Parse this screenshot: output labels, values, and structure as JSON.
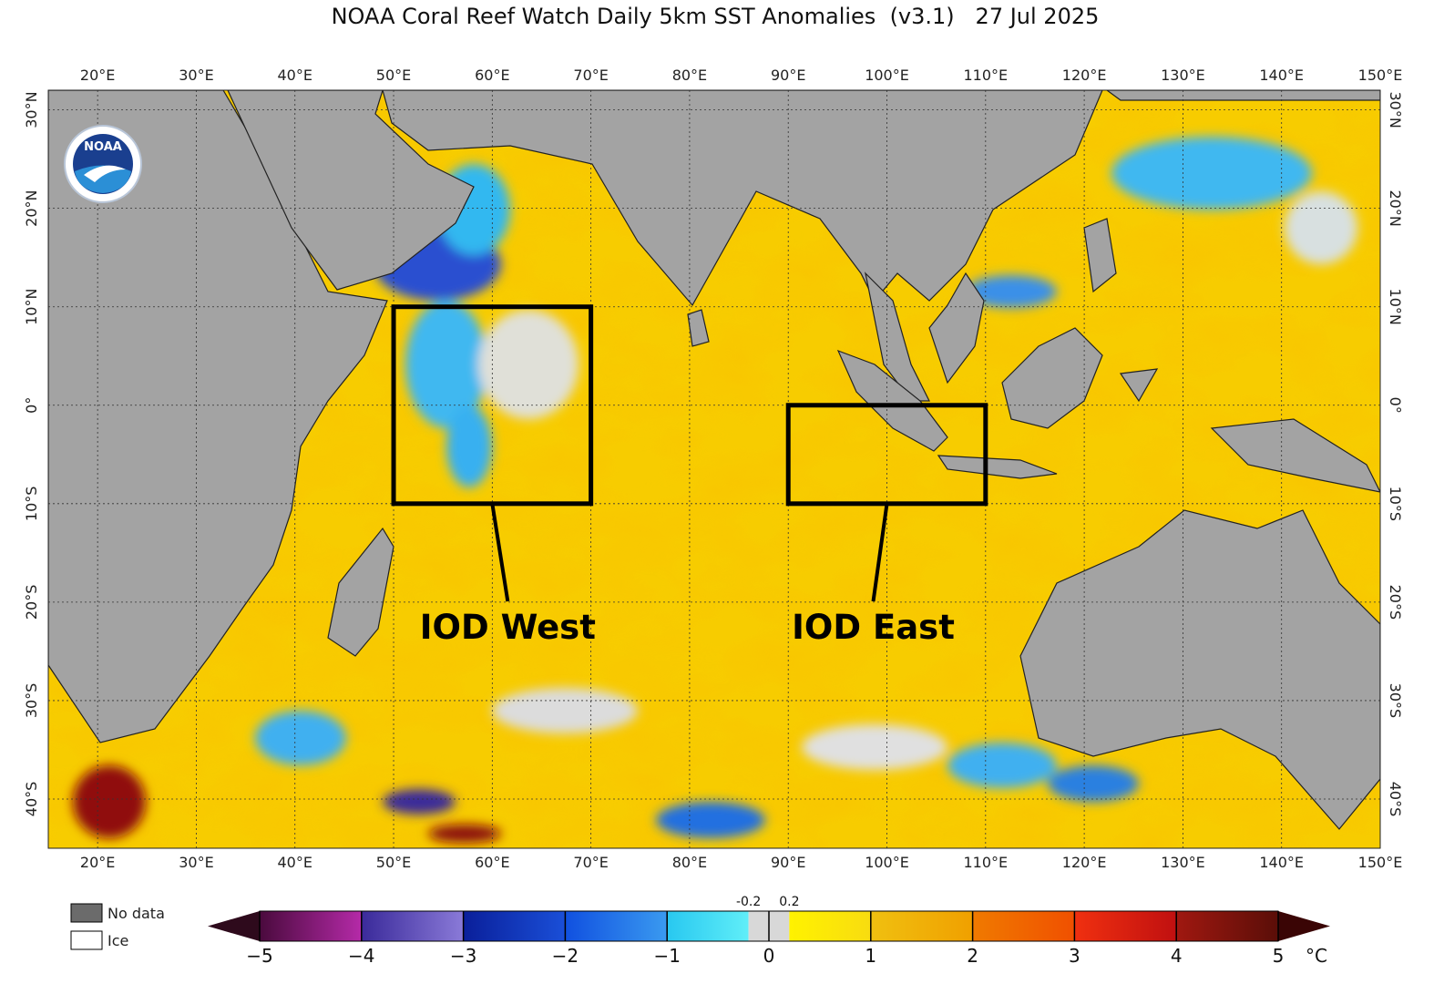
{
  "map": {
    "title": "NOAA Coral Reef Watch Daily 5km SST Anomalies  (v3.1)   27 Jul 2025",
    "logo_text": "NOAA",
    "lonlim": [
      15,
      150
    ],
    "latlim": [
      -45,
      32
    ],
    "lon_ticks": [
      {
        "value": 20,
        "label": "20°E"
      },
      {
        "value": 30,
        "label": "30°E"
      },
      {
        "value": 40,
        "label": "40°E"
      },
      {
        "value": 50,
        "label": "50°E"
      },
      {
        "value": 60,
        "label": "60°E"
      },
      {
        "value": 70,
        "label": "70°E"
      },
      {
        "value": 80,
        "label": "80°E"
      },
      {
        "value": 90,
        "label": "90°E"
      },
      {
        "value": 100,
        "label": "100°E"
      },
      {
        "value": 110,
        "label": "110°E"
      },
      {
        "value": 120,
        "label": "120°E"
      },
      {
        "value": 130,
        "label": "130°E"
      },
      {
        "value": 140,
        "label": "140°E"
      },
      {
        "value": 150,
        "label": "150°E"
      }
    ],
    "lat_ticks": [
      {
        "value": 30,
        "label": "30°N"
      },
      {
        "value": 20,
        "label": "20°N"
      },
      {
        "value": 10,
        "label": "10°N"
      },
      {
        "value": 0,
        "label": "0°"
      },
      {
        "value": -10,
        "label": "10°S"
      },
      {
        "value": -20,
        "label": "20°S"
      },
      {
        "value": -30,
        "label": "30°S"
      },
      {
        "value": -40,
        "label": "40°S"
      }
    ],
    "regions": [
      {
        "name": "IOD West",
        "lon": [
          50,
          70
        ],
        "lat": [
          -10,
          10
        ]
      },
      {
        "name": "IOD East",
        "lon": [
          90,
          110
        ],
        "lat": [
          -10,
          0
        ]
      }
    ],
    "legend": [
      {
        "name": "No data",
        "color": "#6b6b6b"
      },
      {
        "name": "Ice",
        "color": "#ffffff"
      }
    ],
    "colorbar": {
      "lim": [
        -5,
        5
      ],
      "unit": "°C",
      "ticks": [
        {
          "value": -5,
          "label": "−5"
        },
        {
          "value": -4,
          "label": "−4"
        },
        {
          "value": -3,
          "label": "−3"
        },
        {
          "value": -2,
          "label": "−2"
        },
        {
          "value": -1,
          "label": "−1"
        },
        0,
        1,
        2,
        3,
        4,
        5
      ],
      "minor_ticks": [
        -0.2,
        0.2
      ],
      "segments": [
        {
          "from": -5,
          "to": -4,
          "colors": [
            "#4a0a3d",
            "#b52aa8"
          ]
        },
        {
          "from": -4,
          "to": -3,
          "colors": [
            "#3a2a9a",
            "#8a7ad8"
          ]
        },
        {
          "from": -3,
          "to": -2,
          "colors": [
            "#0a1f9a",
            "#1a4fd8"
          ]
        },
        {
          "from": -2,
          "to": -1,
          "colors": [
            "#1050e0",
            "#3a9af0"
          ]
        },
        {
          "from": -1,
          "to": -0.2,
          "colors": [
            "#28c8f0",
            "#60eef8"
          ]
        },
        {
          "from": -0.2,
          "to": 0.2,
          "colors": [
            "#d8d8d8",
            "#d8d8d8"
          ]
        },
        {
          "from": 0.2,
          "to": 1,
          "colors": [
            "#fff200",
            "#f8dc10"
          ]
        },
        {
          "from": 1,
          "to": 2,
          "colors": [
            "#f0c010",
            "#f0a000"
          ]
        },
        {
          "from": 2,
          "to": 3,
          "colors": [
            "#f07a00",
            "#f05000"
          ]
        },
        {
          "from": 3,
          "to": 4,
          "colors": [
            "#f03010",
            "#c01010"
          ]
        },
        {
          "from": 4,
          "to": 5,
          "colors": [
            "#a01810",
            "#5a0e08"
          ]
        }
      ],
      "under_color": "#2e0a1c",
      "over_color": "#3a0505"
    }
  }
}
